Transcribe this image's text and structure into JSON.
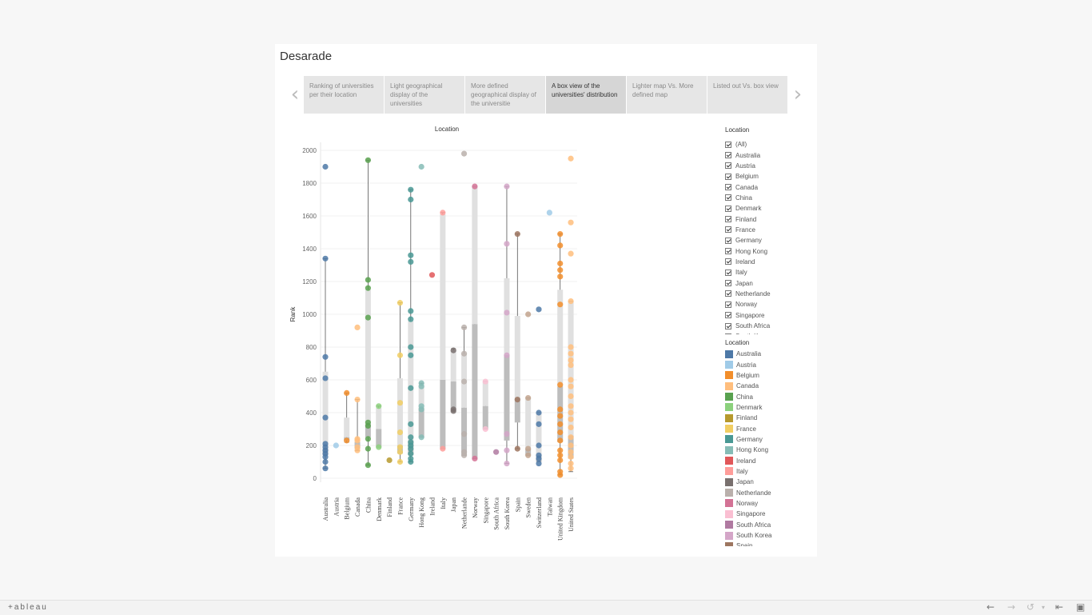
{
  "story": {
    "title": "Desarade",
    "points": [
      {
        "label": "Ranking of universities per their location"
      },
      {
        "label": "Light geographical display of the universities"
      },
      {
        "label": "More defined geographical display of the universitie"
      },
      {
        "label": "A box view of the universities' distribution",
        "active": true
      },
      {
        "label": "Lighter map Vs. More defined map"
      },
      {
        "label": "Listed out Vs. box view"
      }
    ],
    "prev_icon": "‹",
    "next_icon": "›"
  },
  "filter": {
    "title": "Location",
    "items": [
      "(All)",
      "Australia",
      "Austria",
      "Belgium",
      "Canada",
      "China",
      "Denmark",
      "Finland",
      "France",
      "Germany",
      "Hong Kong",
      "Ireland",
      "Italy",
      "Japan",
      "Netherlande",
      "Norway",
      "Singapore",
      "South Africa",
      "South Korea"
    ]
  },
  "legend": {
    "title": "Location",
    "items": [
      {
        "label": "Australia",
        "color": "#4e79a7"
      },
      {
        "label": "Austria",
        "color": "#a0cbe8"
      },
      {
        "label": "Belgium",
        "color": "#f28e2b"
      },
      {
        "label": "Canada",
        "color": "#ffbe7d"
      },
      {
        "label": "China",
        "color": "#59a14f"
      },
      {
        "label": "Denmark",
        "color": "#8cd17d"
      },
      {
        "label": "Finland",
        "color": "#b6992d"
      },
      {
        "label": "France",
        "color": "#f1ce63"
      },
      {
        "label": "Germany",
        "color": "#499894"
      },
      {
        "label": "Hong Kong",
        "color": "#86bcb6"
      },
      {
        "label": "Ireland",
        "color": "#e15759"
      },
      {
        "label": "Italy",
        "color": "#ff9d9a"
      },
      {
        "label": "Japan",
        "color": "#79706e"
      },
      {
        "label": "Netherlande",
        "color": "#bab0ac"
      },
      {
        "label": "Norway",
        "color": "#d37295"
      },
      {
        "label": "Singapore",
        "color": "#fabfd2"
      },
      {
        "label": "South Africa",
        "color": "#b07aa1"
      },
      {
        "label": "South Korea",
        "color": "#d4a6c8"
      },
      {
        "label": "Spain",
        "color": "#9d7660"
      }
    ]
  },
  "footer": {
    "logo": "+ableau",
    "icons": [
      "undo-icon",
      "redo-icon",
      "revert-icon",
      "pause-icon",
      "share-icon",
      "fullscreen-icon"
    ]
  },
  "chart_data": {
    "type": "box",
    "title": "Location",
    "ylabel": "Rank",
    "ylim": [
      0,
      2000
    ],
    "yticks": [
      0,
      200,
      400,
      600,
      800,
      1000,
      1200,
      1400,
      1600,
      1800,
      2000
    ],
    "categories": [
      {
        "name": "Australia",
        "color": "#4e79a7",
        "box": [
          140,
          180,
          650
        ],
        "whisker": [
          60,
          1340
        ],
        "points": [
          60,
          100,
          130,
          150,
          170,
          190,
          210,
          370,
          610,
          740,
          1340,
          1900
        ]
      },
      {
        "name": "Austria",
        "color": "#a0cbe8",
        "box": null,
        "whisker": null,
        "points": [
          200
        ]
      },
      {
        "name": "Belgium",
        "color": "#f28e2b",
        "box": [
          230,
          250,
          370
        ],
        "whisker": [
          220,
          520
        ],
        "points": [
          230,
          520
        ]
      },
      {
        "name": "Canada",
        "color": "#ffbe7d",
        "box": [
          180,
          220,
          240
        ],
        "whisker": [
          170,
          480
        ],
        "points": [
          170,
          190,
          230,
          240,
          480,
          920
        ]
      },
      {
        "name": "China",
        "color": "#59a14f",
        "box": [
          250,
          330,
          1150
        ],
        "whisker": [
          80,
          1940
        ],
        "points": [
          80,
          180,
          240,
          320,
          340,
          980,
          1160,
          1210,
          1940
        ]
      },
      {
        "name": "Denmark",
        "color": "#8cd17d",
        "box": [
          190,
          300,
          430
        ],
        "whisker": [
          190,
          440
        ],
        "points": [
          190,
          440
        ]
      },
      {
        "name": "Finland",
        "color": "#b6992d",
        "box": null,
        "whisker": null,
        "points": [
          110
        ]
      },
      {
        "name": "France",
        "color": "#f1ce63",
        "box": [
          150,
          200,
          610
        ],
        "whisker": [
          100,
          1070
        ],
        "points": [
          100,
          160,
          190,
          280,
          460,
          750,
          1070
        ]
      },
      {
        "name": "Germany",
        "color": "#499894",
        "box": [
          140,
          230,
          960
        ],
        "whisker": [
          100,
          1760
        ],
        "points": [
          100,
          120,
          150,
          180,
          200,
          220,
          250,
          330,
          550,
          750,
          800,
          970,
          1020,
          1320,
          1360,
          1700,
          1760
        ]
      },
      {
        "name": "Hong Kong",
        "color": "#86bcb6",
        "box": [
          250,
          430,
          570
        ],
        "whisker": [
          250,
          580
        ],
        "points": [
          250,
          420,
          440,
          560,
          580,
          1900
        ]
      },
      {
        "name": "Ireland",
        "color": "#e15759",
        "box": null,
        "whisker": null,
        "points": [
          1240
        ]
      },
      {
        "name": "Italy",
        "color": "#ff9d9a",
        "box": [
          180,
          600,
          1610
        ],
        "whisker": [
          180,
          1620
        ],
        "points": [
          180,
          1620
        ]
      },
      {
        "name": "Japan",
        "color": "#79706e",
        "box": [
          420,
          590,
          780
        ],
        "whisker": [
          410,
          790
        ],
        "points": [
          410,
          420,
          780
        ]
      },
      {
        "name": "Netherlande",
        "color": "#bab0ac",
        "box": [
          140,
          430,
          760
        ],
        "whisker": [
          140,
          920
        ],
        "points": [
          140,
          160,
          270,
          590,
          760,
          920,
          1980
        ]
      },
      {
        "name": "Norway",
        "color": "#d37295",
        "box": [
          120,
          940,
          1780
        ],
        "whisker": [
          120,
          1780
        ],
        "points": [
          120,
          1780
        ]
      },
      {
        "name": "Singapore",
        "color": "#fabfd2",
        "box": [
          300,
          440,
          590
        ],
        "whisker": [
          300,
          590
        ],
        "points": [
          300,
          590
        ]
      },
      {
        "name": "South Africa",
        "color": "#b07aa1",
        "box": null,
        "whisker": null,
        "points": [
          160
        ]
      },
      {
        "name": "South Korea",
        "color": "#d4a6c8",
        "box": [
          230,
          750,
          1220
        ],
        "whisker": [
          90,
          1780
        ],
        "points": [
          90,
          170,
          270,
          750,
          1010,
          1430,
          1780
        ]
      },
      {
        "name": "Spain",
        "color": "#9d7660",
        "box": [
          340,
          490,
          990
        ],
        "whisker": [
          180,
          1490
        ],
        "points": [
          180,
          480,
          1490
        ]
      },
      {
        "name": "Sweden",
        "color": "#c2a38d",
        "box": [
          140,
          180,
          490
        ],
        "whisker": [
          140,
          490
        ],
        "points": [
          140,
          180,
          490,
          1000
        ]
      },
      {
        "name": "Switzerland",
        "color": "#4e79a7",
        "box": [
          100,
          140,
          400
        ],
        "whisker": [
          100,
          400
        ],
        "points": [
          90,
          120,
          140,
          200,
          330,
          400,
          1030
        ]
      },
      {
        "name": "Taiwan",
        "color": "#a0cbe8",
        "box": null,
        "whisker": null,
        "points": [
          1620
        ]
      },
      {
        "name": "United Kingdom",
        "color": "#f28e2b",
        "box": [
          220,
          560,
          1150
        ],
        "whisker": [
          20,
          1490
        ],
        "points": [
          20,
          40,
          110,
          140,
          170,
          230,
          280,
          330,
          380,
          420,
          570,
          1060,
          1230,
          1270,
          1310,
          1420,
          1490
        ]
      },
      {
        "name": "United States",
        "color": "#ffbe7d",
        "box": [
          120,
          260,
          1080
        ],
        "whisker": [
          40,
          1080
        ],
        "points": [
          60,
          90,
          130,
          160,
          200,
          250,
          310,
          360,
          400,
          440,
          500,
          560,
          600,
          690,
          720,
          760,
          800,
          1080,
          1370,
          1560,
          1950
        ]
      }
    ]
  }
}
